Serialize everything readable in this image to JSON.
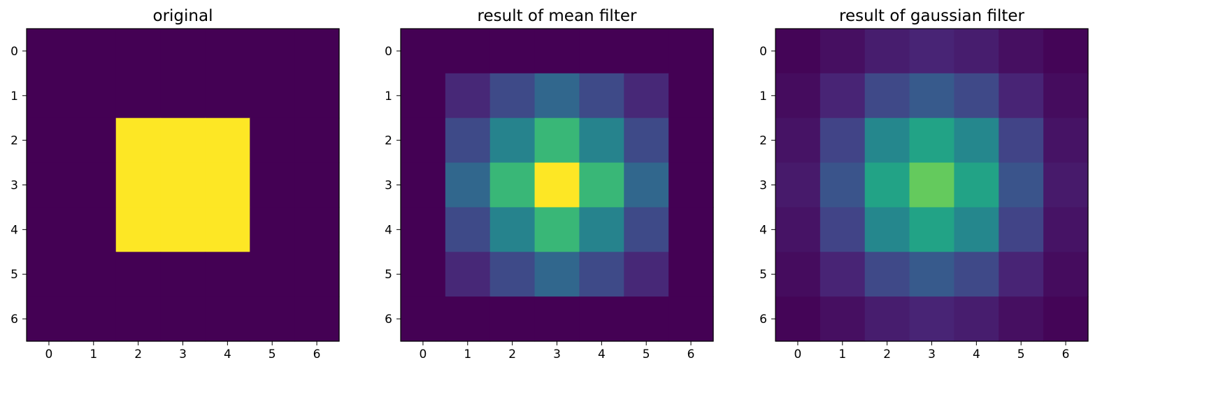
{
  "colormap": "viridis",
  "chart_data": [
    {
      "type": "heatmap",
      "title": "original",
      "x_ticks": [
        "0",
        "1",
        "2",
        "3",
        "4",
        "5",
        "6"
      ],
      "y_ticks": [
        "0",
        "1",
        "2",
        "3",
        "4",
        "5",
        "6"
      ],
      "vmin": 0,
      "vmax": 1,
      "values": [
        [
          0,
          0,
          0,
          0,
          0,
          0,
          0
        ],
        [
          0,
          0,
          0,
          0,
          0,
          0,
          0
        ],
        [
          0,
          0,
          1,
          1,
          1,
          0,
          0
        ],
        [
          0,
          0,
          1,
          1,
          1,
          0,
          0
        ],
        [
          0,
          0,
          1,
          1,
          1,
          0,
          0
        ],
        [
          0,
          0,
          0,
          0,
          0,
          0,
          0
        ],
        [
          0,
          0,
          0,
          0,
          0,
          0,
          0
        ]
      ]
    },
    {
      "type": "heatmap",
      "title": "result of mean filter",
      "x_ticks": [
        "0",
        "1",
        "2",
        "3",
        "4",
        "5",
        "6"
      ],
      "y_ticks": [
        "0",
        "1",
        "2",
        "3",
        "4",
        "5",
        "6"
      ],
      "vmin": 0,
      "vmax": 1,
      "values": [
        [
          0,
          0,
          0,
          0,
          0,
          0,
          0
        ],
        [
          0,
          0.111,
          0.222,
          0.333,
          0.222,
          0.111,
          0
        ],
        [
          0,
          0.222,
          0.444,
          0.667,
          0.444,
          0.222,
          0
        ],
        [
          0,
          0.333,
          0.667,
          1.0,
          0.667,
          0.333,
          0
        ],
        [
          0,
          0.222,
          0.444,
          0.667,
          0.444,
          0.222,
          0
        ],
        [
          0,
          0.111,
          0.222,
          0.333,
          0.222,
          0.111,
          0
        ],
        [
          0,
          0,
          0,
          0,
          0,
          0,
          0
        ]
      ]
    },
    {
      "type": "heatmap",
      "title": "result of gaussian filter",
      "x_ticks": [
        "0",
        "1",
        "2",
        "3",
        "4",
        "5",
        "6"
      ],
      "y_ticks": [
        "0",
        "1",
        "2",
        "3",
        "4",
        "5",
        "6"
      ],
      "vmin": 0,
      "vmax": 1,
      "values": [
        [
          0.01,
          0.04,
          0.08,
          0.1,
          0.08,
          0.04,
          0.01
        ],
        [
          0.03,
          0.1,
          0.22,
          0.28,
          0.22,
          0.1,
          0.03
        ],
        [
          0.05,
          0.2,
          0.46,
          0.58,
          0.46,
          0.2,
          0.05
        ],
        [
          0.07,
          0.26,
          0.58,
          0.76,
          0.58,
          0.26,
          0.07
        ],
        [
          0.05,
          0.2,
          0.46,
          0.58,
          0.46,
          0.2,
          0.05
        ],
        [
          0.03,
          0.1,
          0.22,
          0.28,
          0.22,
          0.1,
          0.03
        ],
        [
          0.01,
          0.04,
          0.08,
          0.1,
          0.08,
          0.04,
          0.01
        ]
      ]
    }
  ]
}
